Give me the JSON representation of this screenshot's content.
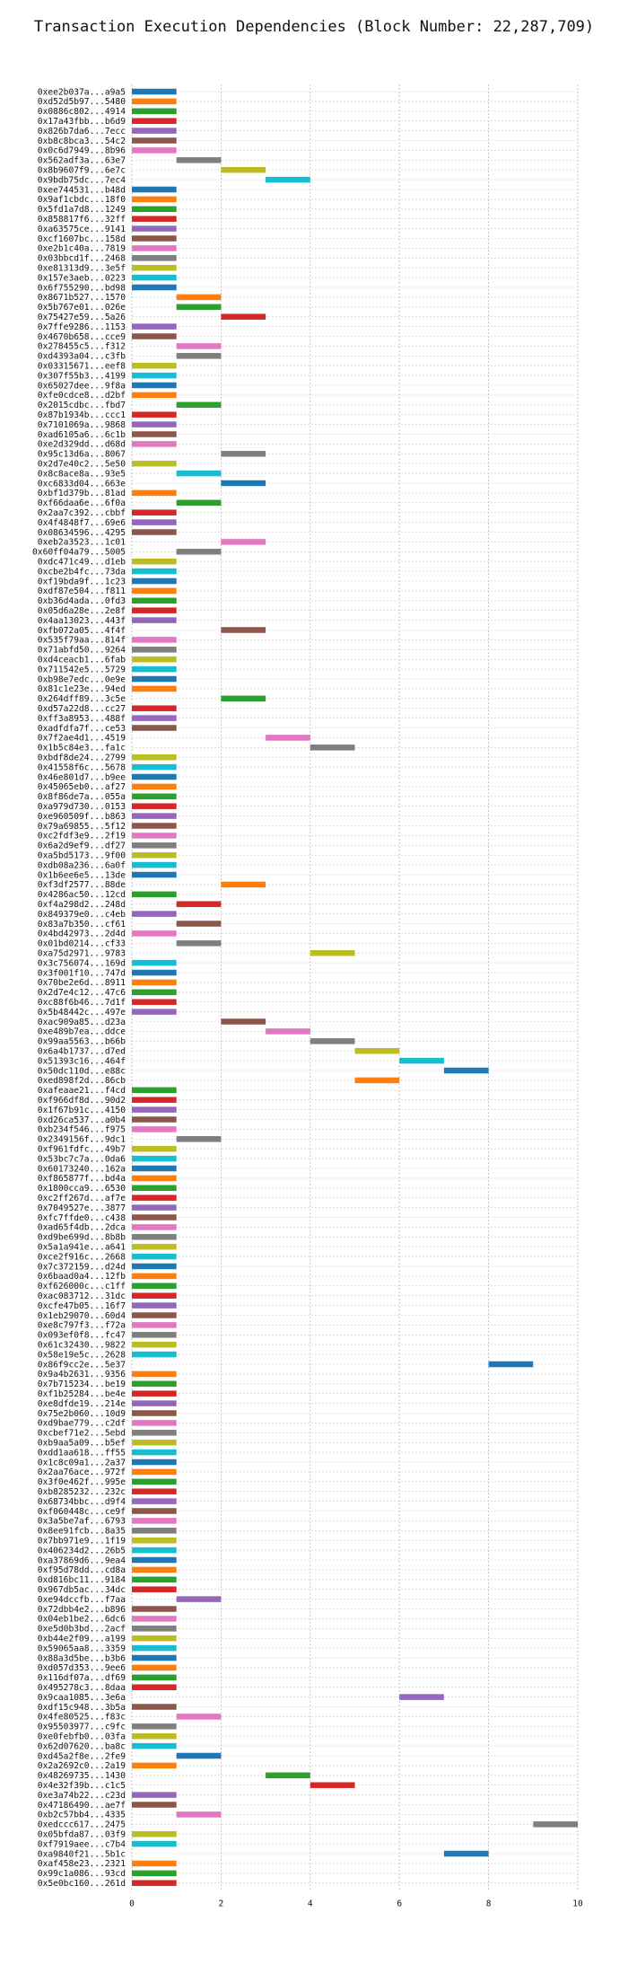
{
  "chart_data": {
    "type": "gantt-bar",
    "title": "Transaction Execution Dependencies (Block Number: 22,287,709)",
    "xlabel": "",
    "ylabel": "",
    "xlim": [
      0,
      10
    ],
    "x_ticks": [
      0,
      2,
      4,
      6,
      8,
      10
    ],
    "grid": true,
    "palette": [
      "#1f77b4",
      "#ff7f0e",
      "#2ca02c",
      "#d62728",
      "#9467bd",
      "#8c564b",
      "#e377c2",
      "#7f7f7f",
      "#bcbd22",
      "#17becf"
    ],
    "transactions": [
      {
        "label": "0xee2b037a...a9a5",
        "start": 0,
        "end": 1
      },
      {
        "label": "0xd52d5b97...5480",
        "start": 0,
        "end": 1
      },
      {
        "label": "0x0886c802...4914",
        "start": 0,
        "end": 1
      },
      {
        "label": "0x17a43fbb...b6d9",
        "start": 0,
        "end": 1
      },
      {
        "label": "0x826b7da6...7ecc",
        "start": 0,
        "end": 1
      },
      {
        "label": "0xb8c8bca3...54c2",
        "start": 0,
        "end": 1
      },
      {
        "label": "0x0c6d7949...8b96",
        "start": 0,
        "end": 1
      },
      {
        "label": "0x562adf3a...63e7",
        "start": 1,
        "end": 2
      },
      {
        "label": "0x8b9607f9...6e7c",
        "start": 2,
        "end": 3
      },
      {
        "label": "0x9bdb75dc...7ec4",
        "start": 3,
        "end": 4
      },
      {
        "label": "0xee744531...b48d",
        "start": 0,
        "end": 1
      },
      {
        "label": "0x9af1cbdc...18f0",
        "start": 0,
        "end": 1
      },
      {
        "label": "0x5fd1a7d8...1249",
        "start": 0,
        "end": 1
      },
      {
        "label": "0x858817f6...32ff",
        "start": 0,
        "end": 1
      },
      {
        "label": "0xa63575ce...9141",
        "start": 0,
        "end": 1
      },
      {
        "label": "0xcf1607bc...158d",
        "start": 0,
        "end": 1
      },
      {
        "label": "0xe2b1c40a...7819",
        "start": 0,
        "end": 1
      },
      {
        "label": "0x03bbcd1f...2468",
        "start": 0,
        "end": 1
      },
      {
        "label": "0xe81313d9...3e5f",
        "start": 0,
        "end": 1
      },
      {
        "label": "0x157e3aeb...0223",
        "start": 0,
        "end": 1
      },
      {
        "label": "0x6f755290...bd98",
        "start": 0,
        "end": 1
      },
      {
        "label": "0x8671b527...1570",
        "start": 1,
        "end": 2
      },
      {
        "label": "0x5b767e01...026e",
        "start": 1,
        "end": 2
      },
      {
        "label": "0x75427e59...5a26",
        "start": 2,
        "end": 3
      },
      {
        "label": "0x7ffe9286...1153",
        "start": 0,
        "end": 1
      },
      {
        "label": "0x4670b658...cce9",
        "start": 0,
        "end": 1
      },
      {
        "label": "0x278455c5...f312",
        "start": 1,
        "end": 2
      },
      {
        "label": "0xd4393a04...c3fb",
        "start": 1,
        "end": 2
      },
      {
        "label": "0x03315671...eef8",
        "start": 0,
        "end": 1
      },
      {
        "label": "0x307f55b3...4199",
        "start": 0,
        "end": 1
      },
      {
        "label": "0x65027dee...9f8a",
        "start": 0,
        "end": 1
      },
      {
        "label": "0xfe0cdce8...d2bf",
        "start": 0,
        "end": 1
      },
      {
        "label": "0x2015cdbc...fbd7",
        "start": 1,
        "end": 2
      },
      {
        "label": "0x87b1934b...ccc1",
        "start": 0,
        "end": 1
      },
      {
        "label": "0x7101069a...9868",
        "start": 0,
        "end": 1
      },
      {
        "label": "0xad6105a6...6c1b",
        "start": 0,
        "end": 1
      },
      {
        "label": "0xe2d329dd...d68d",
        "start": 0,
        "end": 1
      },
      {
        "label": "0x95c13d6a...8067",
        "start": 2,
        "end": 3
      },
      {
        "label": "0x2d7e40c2...5e50",
        "start": 0,
        "end": 1
      },
      {
        "label": "0x8c8ace8a...93e5",
        "start": 1,
        "end": 2
      },
      {
        "label": "0xc6833d04...663e",
        "start": 2,
        "end": 3
      },
      {
        "label": "0xbf1d379b...81ad",
        "start": 0,
        "end": 1
      },
      {
        "label": "0xf66daa6e...6f0a",
        "start": 1,
        "end": 2
      },
      {
        "label": "0x2aa7c392...cbbf",
        "start": 0,
        "end": 1
      },
      {
        "label": "0x4f4848f7...69e6",
        "start": 0,
        "end": 1
      },
      {
        "label": "0x08634596...4295",
        "start": 0,
        "end": 1
      },
      {
        "label": "0xeb2a3523...1c01",
        "start": 2,
        "end": 3
      },
      {
        "label": "0x60ff04a79...5005",
        "start": 1,
        "end": 2
      },
      {
        "label": "0xdc471c49...d1eb",
        "start": 0,
        "end": 1
      },
      {
        "label": "0xcbe2b4fc...73da",
        "start": 0,
        "end": 1
      },
      {
        "label": "0xf19bda9f...1c23",
        "start": 0,
        "end": 1
      },
      {
        "label": "0xdf87e504...f811",
        "start": 0,
        "end": 1
      },
      {
        "label": "0xb36d4ada...0fd3",
        "start": 0,
        "end": 1
      },
      {
        "label": "0x05d6a28e...2e8f",
        "start": 0,
        "end": 1
      },
      {
        "label": "0x4aa13023...443f",
        "start": 0,
        "end": 1
      },
      {
        "label": "0xfb072a05...4f4f",
        "start": 2,
        "end": 3
      },
      {
        "label": "0x535f79aa...814f",
        "start": 0,
        "end": 1
      },
      {
        "label": "0x71abfd50...9264",
        "start": 0,
        "end": 1
      },
      {
        "label": "0xd4ceacb1...6fab",
        "start": 0,
        "end": 1
      },
      {
        "label": "0x711542e5...5729",
        "start": 0,
        "end": 1
      },
      {
        "label": "0xb98e7edc...0e9e",
        "start": 0,
        "end": 1
      },
      {
        "label": "0x81c1e23e...94ed",
        "start": 0,
        "end": 1
      },
      {
        "label": "0x264dff89...3c5e",
        "start": 2,
        "end": 3
      },
      {
        "label": "0xd57a22d8...cc27",
        "start": 0,
        "end": 1
      },
      {
        "label": "0xff3a8953...488f",
        "start": 0,
        "end": 1
      },
      {
        "label": "0xadfdfa7f...ce53",
        "start": 0,
        "end": 1
      },
      {
        "label": "0x7f2ae4d1...4519",
        "start": 3,
        "end": 4
      },
      {
        "label": "0x1b5c84e3...fa1c",
        "start": 4,
        "end": 5
      },
      {
        "label": "0xbdf8de24...2799",
        "start": 0,
        "end": 1
      },
      {
        "label": "0x41558f6c...5678",
        "start": 0,
        "end": 1
      },
      {
        "label": "0x46e801d7...b9ee",
        "start": 0,
        "end": 1
      },
      {
        "label": "0x45065eb0...af27",
        "start": 0,
        "end": 1
      },
      {
        "label": "0x8f86de7a...055a",
        "start": 0,
        "end": 1
      },
      {
        "label": "0xa979d730...0153",
        "start": 0,
        "end": 1
      },
      {
        "label": "0xe960509f...b863",
        "start": 0,
        "end": 1
      },
      {
        "label": "0x79a69855...5f12",
        "start": 0,
        "end": 1
      },
      {
        "label": "0xc2fdf3e9...2f19",
        "start": 0,
        "end": 1
      },
      {
        "label": "0x6a2d9ef9...df27",
        "start": 0,
        "end": 1
      },
      {
        "label": "0xa5bd5173...9f00",
        "start": 0,
        "end": 1
      },
      {
        "label": "0xdb08a236...6a0f",
        "start": 0,
        "end": 1
      },
      {
        "label": "0x1b6ee6e5...13de",
        "start": 0,
        "end": 1
      },
      {
        "label": "0xf3df2577...88de",
        "start": 2,
        "end": 3
      },
      {
        "label": "0x4286ac50...12cd",
        "start": 0,
        "end": 1
      },
      {
        "label": "0xf4a298d2...248d",
        "start": 1,
        "end": 2
      },
      {
        "label": "0x849379e0...c4eb",
        "start": 0,
        "end": 1
      },
      {
        "label": "0x83a7b350...cf61",
        "start": 1,
        "end": 2
      },
      {
        "label": "0x4bd42973...2d4d",
        "start": 0,
        "end": 1
      },
      {
        "label": "0x01bd0214...cf33",
        "start": 1,
        "end": 2
      },
      {
        "label": "0xa75d2971...9783",
        "start": 4,
        "end": 5
      },
      {
        "label": "0x3c756074...169d",
        "start": 0,
        "end": 1
      },
      {
        "label": "0x3f001f10...747d",
        "start": 0,
        "end": 1
      },
      {
        "label": "0x70be2e6d...8911",
        "start": 0,
        "end": 1
      },
      {
        "label": "0x2d7e4c12...47c6",
        "start": 0,
        "end": 1
      },
      {
        "label": "0xc88f6b46...7d1f",
        "start": 0,
        "end": 1
      },
      {
        "label": "0x5b48442c...497e",
        "start": 0,
        "end": 1
      },
      {
        "label": "0xac909a85...d23a",
        "start": 2,
        "end": 3
      },
      {
        "label": "0xe489b7ea...ddce",
        "start": 3,
        "end": 4
      },
      {
        "label": "0x99aa5563...b66b",
        "start": 4,
        "end": 5
      },
      {
        "label": "0x6a4b1737...d7ed",
        "start": 5,
        "end": 6
      },
      {
        "label": "0x51393c16...464f",
        "start": 6,
        "end": 7
      },
      {
        "label": "0x50dc110d...e88c",
        "start": 7,
        "end": 8
      },
      {
        "label": "0xed898f2d...86cb",
        "start": 5,
        "end": 6
      },
      {
        "label": "0xafeaae21...f4cd",
        "start": 0,
        "end": 1
      },
      {
        "label": "0xf966df8d...90d2",
        "start": 0,
        "end": 1
      },
      {
        "label": "0x1f67b91c...4150",
        "start": 0,
        "end": 1
      },
      {
        "label": "0xd26ca537...a0b4",
        "start": 0,
        "end": 1
      },
      {
        "label": "0xb234f546...f975",
        "start": 0,
        "end": 1
      },
      {
        "label": "0x2349156f...9dc1",
        "start": 1,
        "end": 2
      },
      {
        "label": "0xf961fdfc...49b7",
        "start": 0,
        "end": 1
      },
      {
        "label": "0x53bc7c7a...0da6",
        "start": 0,
        "end": 1
      },
      {
        "label": "0x60173240...162a",
        "start": 0,
        "end": 1
      },
      {
        "label": "0xf865877f...bd4a",
        "start": 0,
        "end": 1
      },
      {
        "label": "0x1800cca9...6530",
        "start": 0,
        "end": 1
      },
      {
        "label": "0xc2ff267d...af7e",
        "start": 0,
        "end": 1
      },
      {
        "label": "0x7049527e...3877",
        "start": 0,
        "end": 1
      },
      {
        "label": "0xfc7ffde0...c438",
        "start": 0,
        "end": 1
      },
      {
        "label": "0xad65f4db...2dca",
        "start": 0,
        "end": 1
      },
      {
        "label": "0xd9be699d...8b8b",
        "start": 0,
        "end": 1
      },
      {
        "label": "0x5a1a941e...a641",
        "start": 0,
        "end": 1
      },
      {
        "label": "0xce2f916c...2668",
        "start": 0,
        "end": 1
      },
      {
        "label": "0x7c372159...d24d",
        "start": 0,
        "end": 1
      },
      {
        "label": "0x6baad0a4...12fb",
        "start": 0,
        "end": 1
      },
      {
        "label": "0xf626000c...c1ff",
        "start": 0,
        "end": 1
      },
      {
        "label": "0xac083712...31dc",
        "start": 0,
        "end": 1
      },
      {
        "label": "0xcfe47b05...16f7",
        "start": 0,
        "end": 1
      },
      {
        "label": "0x1eb29070...60d4",
        "start": 0,
        "end": 1
      },
      {
        "label": "0xe8c797f3...f72a",
        "start": 0,
        "end": 1
      },
      {
        "label": "0x093ef0f8...fc47",
        "start": 0,
        "end": 1
      },
      {
        "label": "0x61c32430...9822",
        "start": 0,
        "end": 1
      },
      {
        "label": "0x58e19e5c...2628",
        "start": 0,
        "end": 1
      },
      {
        "label": "0x86f9cc2e...5e37",
        "start": 8,
        "end": 9
      },
      {
        "label": "0x9a4b2631...9356",
        "start": 0,
        "end": 1
      },
      {
        "label": "0x7b715234...be19",
        "start": 0,
        "end": 1
      },
      {
        "label": "0xf1b25284...be4e",
        "start": 0,
        "end": 1
      },
      {
        "label": "0xe8dfde19...214e",
        "start": 0,
        "end": 1
      },
      {
        "label": "0x75e2b060...10d9",
        "start": 0,
        "end": 1
      },
      {
        "label": "0xd9bae779...c2df",
        "start": 0,
        "end": 1
      },
      {
        "label": "0xcbef71e2...5ebd",
        "start": 0,
        "end": 1
      },
      {
        "label": "0xb9aa5a09...b5ef",
        "start": 0,
        "end": 1
      },
      {
        "label": "0xdd1aa618...ff55",
        "start": 0,
        "end": 1
      },
      {
        "label": "0x1c8c09a1...2a37",
        "start": 0,
        "end": 1
      },
      {
        "label": "0x2aa76ace...972f",
        "start": 0,
        "end": 1
      },
      {
        "label": "0x3f0e462f...995e",
        "start": 0,
        "end": 1
      },
      {
        "label": "0xb8285232...232c",
        "start": 0,
        "end": 1
      },
      {
        "label": "0x68734bbc...d9f4",
        "start": 0,
        "end": 1
      },
      {
        "label": "0xf060448c...ce9f",
        "start": 0,
        "end": 1
      },
      {
        "label": "0x3a5be7af...6793",
        "start": 0,
        "end": 1
      },
      {
        "label": "0x8ee91fcb...8a35",
        "start": 0,
        "end": 1
      },
      {
        "label": "0x7bb971e9...1f19",
        "start": 0,
        "end": 1
      },
      {
        "label": "0x406234d2...26b5",
        "start": 0,
        "end": 1
      },
      {
        "label": "0xa37869d6...9ea4",
        "start": 0,
        "end": 1
      },
      {
        "label": "0xf95d78dd...cd8a",
        "start": 0,
        "end": 1
      },
      {
        "label": "0xd816bc11...9184",
        "start": 0,
        "end": 1
      },
      {
        "label": "0x967db5ac...34dc",
        "start": 0,
        "end": 1
      },
      {
        "label": "0xe94dccfb...f7aa",
        "start": 1,
        "end": 2
      },
      {
        "label": "0x72dbb4e2...b896",
        "start": 0,
        "end": 1
      },
      {
        "label": "0x04eb1be2...6dc6",
        "start": 0,
        "end": 1
      },
      {
        "label": "0xe5d0b3bd...2acf",
        "start": 0,
        "end": 1
      },
      {
        "label": "0xb44e2f09...a199",
        "start": 0,
        "end": 1
      },
      {
        "label": "0x59065aa8...3359",
        "start": 0,
        "end": 1
      },
      {
        "label": "0x88a3d5be...b3b6",
        "start": 0,
        "end": 1
      },
      {
        "label": "0xd057d353...9ee6",
        "start": 0,
        "end": 1
      },
      {
        "label": "0x116df07a...df69",
        "start": 0,
        "end": 1
      },
      {
        "label": "0x495278c3...8daa",
        "start": 0,
        "end": 1
      },
      {
        "label": "0x9caa1085...3e6a",
        "start": 6,
        "end": 7
      },
      {
        "label": "0xdf15c948...3b5a",
        "start": 0,
        "end": 1
      },
      {
        "label": "0x4fe80525...f83c",
        "start": 1,
        "end": 2
      },
      {
        "label": "0x95503977...c9fc",
        "start": 0,
        "end": 1
      },
      {
        "label": "0xe0febfb0...03fa",
        "start": 0,
        "end": 1
      },
      {
        "label": "0x62d07620...ba8c",
        "start": 0,
        "end": 1
      },
      {
        "label": "0xd45a2f8e...2fe9",
        "start": 1,
        "end": 2
      },
      {
        "label": "0x2a2692c0...2a19",
        "start": 0,
        "end": 1
      },
      {
        "label": "0x48269735...1430",
        "start": 3,
        "end": 4
      },
      {
        "label": "0x4e32f39b...c1c5",
        "start": 4,
        "end": 5
      },
      {
        "label": "0xe3a74b22...c23d",
        "start": 0,
        "end": 1
      },
      {
        "label": "0x47186490...ae7f",
        "start": 0,
        "end": 1
      },
      {
        "label": "0xb2c57bb4...4335",
        "start": 1,
        "end": 2
      },
      {
        "label": "0xedccc617...2475",
        "start": 9,
        "end": 10
      },
      {
        "label": "0x05bfda87...03f9",
        "start": 0,
        "end": 1
      },
      {
        "label": "0xf7919aee...c7b4",
        "start": 0,
        "end": 1
      },
      {
        "label": "0xa9840f21...5b1c",
        "start": 7,
        "end": 8
      },
      {
        "label": "0xaf458e23...2321",
        "start": 0,
        "end": 1
      },
      {
        "label": "0x99c1a086...93cd",
        "start": 0,
        "end": 1
      },
      {
        "label": "0x5e0bc160...261d",
        "start": 0,
        "end": 1
      }
    ]
  }
}
